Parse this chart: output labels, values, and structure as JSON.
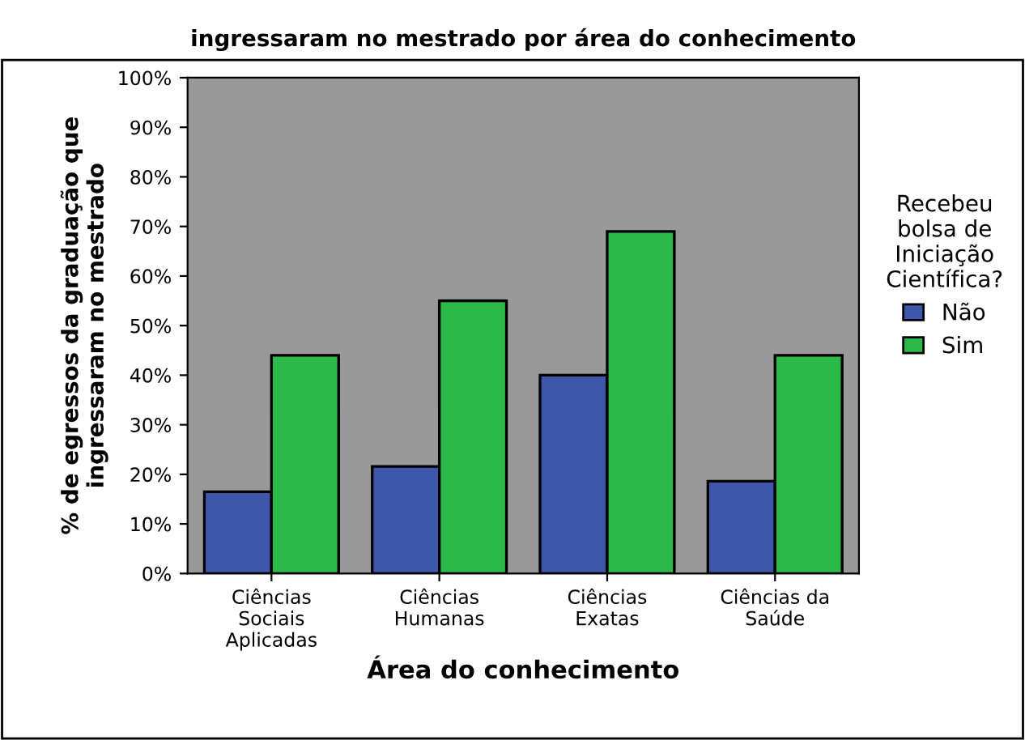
{
  "chart_data": {
    "type": "bar",
    "title": "ingressaram no mestrado por área do conhecimento",
    "xlabel": "Área do conhecimento",
    "ylabel": "% de egressos da graduação que\ningressaram no mestrado",
    "legend_title": "Recebeu\nbolsa de\nIniciação\nCientífica?",
    "categories": [
      "Ciências\nSociais\nAplicadas",
      "Ciências\nHumanas",
      "Ciências\nExatas",
      "Ciências da\nSaúde"
    ],
    "series": [
      {
        "name": "Não",
        "color": "#3f57ab",
        "values": [
          16.5,
          21.6,
          40,
          18.6
        ]
      },
      {
        "name": "Sim",
        "color": "#2db84a",
        "values": [
          44,
          55,
          69,
          44
        ]
      }
    ],
    "ylim": [
      0,
      100
    ],
    "yticks": [
      {
        "value": 0,
        "label": "0%"
      },
      {
        "value": 10,
        "label": "10%"
      },
      {
        "value": 20,
        "label": "20%"
      },
      {
        "value": 30,
        "label": "30%"
      },
      {
        "value": 40,
        "label": "40%"
      },
      {
        "value": 50,
        "label": "50%"
      },
      {
        "value": 60,
        "label": "60%"
      },
      {
        "value": 70,
        "label": "70%"
      },
      {
        "value": 80,
        "label": "80%"
      },
      {
        "value": 90,
        "label": "90%"
      },
      {
        "value": 100,
        "label": "100%"
      }
    ],
    "grid": false,
    "legend": "right"
  }
}
